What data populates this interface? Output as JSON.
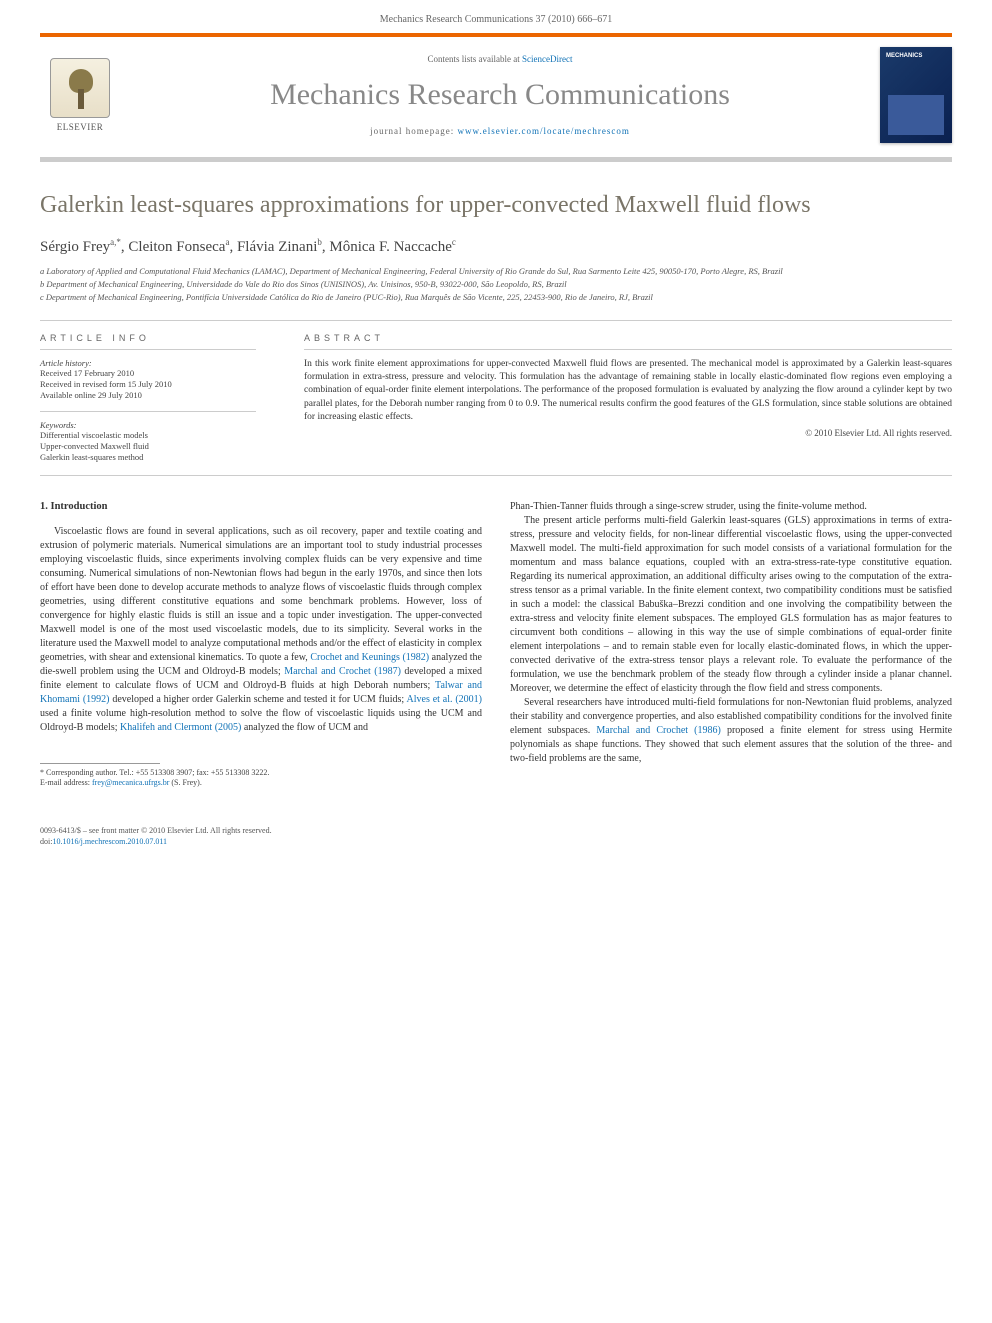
{
  "header": {
    "citation": "Mechanics Research Communications 37 (2010) 666–671"
  },
  "journal": {
    "contents_prefix": "Contents lists available at ",
    "contents_link": "ScienceDirect",
    "name": "Mechanics Research Communications",
    "homepage_prefix": "journal homepage: ",
    "homepage_url": "www.elsevier.com/locate/mechrescom",
    "publisher": "ELSEVIER"
  },
  "article": {
    "title": "Galerkin least-squares approximations for upper-convected Maxwell fluid flows",
    "authors_html": "Sérgio Frey<sup>a,*</sup>, Cleiton Fonseca<sup>a</sup>, Flávia Zinani<sup>b</sup>, Mônica F. Naccache<sup>c</sup>",
    "affiliations": [
      "a Laboratory of Applied and Computational Fluid Mechanics (LAMAC), Department of Mechanical Engineering, Federal University of Rio Grande do Sul, Rua Sarmento Leite 425, 90050-170, Porto Alegre, RS, Brazil",
      "b Department of Mechanical Engineering, Universidade do Vale do Rio dos Sinos (UNISINOS), Av. Unisinos, 950-B, 93022-000, São Leopoldo, RS, Brazil",
      "c Department of Mechanical Engineering, Pontifícia Universidade Católica do Rio de Janeiro (PUC-Rio), Rua Marquês de São Vicente, 225, 22453-900, Rio de Janeiro, RJ, Brazil"
    ]
  },
  "info": {
    "heading": "ARTICLE INFO",
    "history_label": "Article history:",
    "history": [
      "Received 17 February 2010",
      "Received in revised form 15 July 2010",
      "Available online 29 July 2010"
    ],
    "keywords_label": "Keywords:",
    "keywords": [
      "Differential viscoelastic models",
      "Upper-convected Maxwell fluid",
      "Galerkin least-squares method"
    ]
  },
  "abstract": {
    "heading": "ABSTRACT",
    "text": "In this work finite element approximations for upper-convected Maxwell fluid flows are presented. The mechanical model is approximated by a Galerkin least-squares formulation in extra-stress, pressure and velocity. This formulation has the advantage of remaining stable in locally elastic-dominated flow regions even employing a combination of equal-order finite element interpolations. The performance of the proposed formulation is evaluated by analyzing the flow around a cylinder kept by two parallel plates, for the Deborah number ranging from 0 to 0.9. The numerical results confirm the good features of the GLS formulation, since stable solutions are obtained for increasing elastic effects.",
    "copyright": "© 2010 Elsevier Ltd. All rights reserved."
  },
  "body": {
    "section_heading": "1. Introduction",
    "left_paragraphs": [
      "Viscoelastic flows are found in several applications, such as oil recovery, paper and textile coating and extrusion of polymeric materials. Numerical simulations are an important tool to study industrial processes employing viscoelastic fluids, since experiments involving complex fluids can be very expensive and time consuming. Numerical simulations of non-Newtonian flows had begun in the early 1970s, and since then lots of effort have been done to develop accurate methods to analyze flows of viscoelastic fluids through complex geometries, using different constitutive equations and some benchmark problems. However, loss of convergence for highly elastic fluids is still an issue and a topic under investigation. The upper-convected Maxwell model is one of the most used viscoelastic models, due to its simplicity. Several works in the literature used the Maxwell model to analyze computational methods and/or the effect of elasticity in complex geometries, with shear and extensional kinematics. To quote a few, <span class=\"cite\">Crochet and Keunings (1982)</span> analyzed the die-swell problem using the UCM and Oldroyd-B models; <span class=\"cite\">Marchal and Crochet (1987)</span> developed a mixed finite element to calculate flows of UCM and Oldroyd-B fluids at high Deborah numbers; <span class=\"cite\">Talwar and Khomami (1992)</span> developed a higher order Galerkin scheme and tested it for UCM fluids; <span class=\"cite\">Alves et al. (2001)</span> used a finite volume high-resolution method to solve the flow of viscoelastic liquids using the UCM and Oldroyd-B models; <span class=\"cite\">Khalifeh and Clermont (2005)</span> analyzed the flow of UCM and"
    ],
    "right_paragraphs": [
      "Phan-Thien-Tanner fluids through a singe-screw struder, using the finite-volume method.",
      "The present article performs multi-field Galerkin least-squares (GLS) approximations in terms of extra-stress, pressure and velocity fields, for non-linear differential viscoelastic flows, using the upper-convected Maxwell model. The multi-field approximation for such model consists of a variational formulation for the momentum and mass balance equations, coupled with an extra-stress-rate-type constitutive equation. Regarding its numerical approximation, an additional difficulty arises owing to the computation of the extra-stress tensor as a primal variable. In the finite element context, two compatibility conditions must be satisfied in such a model: the classical Babuška–Brezzi condition and one involving the compatibility between the extra-stress and velocity finite element subspaces. The employed GLS formulation has as major features to circumvent both conditions – allowing in this way the use of simple combinations of equal-order finite element interpolations – and to remain stable even for locally elastic-dominated flows, in which the upper-convected derivative of the extra-stress tensor plays a relevant role. To evaluate the performance of the formulation, we use the benchmark problem of the steady flow through a cylinder inside a planar channel. Moreover, we determine the effect of elasticity through the flow field and stress components.",
      "Several researchers have introduced multi-field formulations for non-Newtonian fluid problems, analyzed their stability and convergence properties, and also established compatibility conditions for the involved finite element subspaces. <span class=\"cite\">Marchal and Crochet (1986)</span> proposed a finite element for stress using Hermite polynomials as shape functions. They showed that such element assures that the solution of the three- and two-field problems are the same,"
    ]
  },
  "footnote": {
    "corresponding": "* Corresponding author. Tel.: +55 513308 3907; fax: +55 513308 3222.",
    "email_label": "E-mail address: ",
    "email": "frey@mecanica.ufrgs.br",
    "email_suffix": " (S. Frey)."
  },
  "footer": {
    "issn_line": "0093-6413/$ – see front matter © 2010 Elsevier Ltd. All rights reserved.",
    "doi_label": "doi:",
    "doi": "10.1016/j.mechrescom.2010.07.011"
  },
  "colors": {
    "accent": "#eb6500",
    "link": "#1172b6",
    "title_gray": "#7a7568"
  }
}
